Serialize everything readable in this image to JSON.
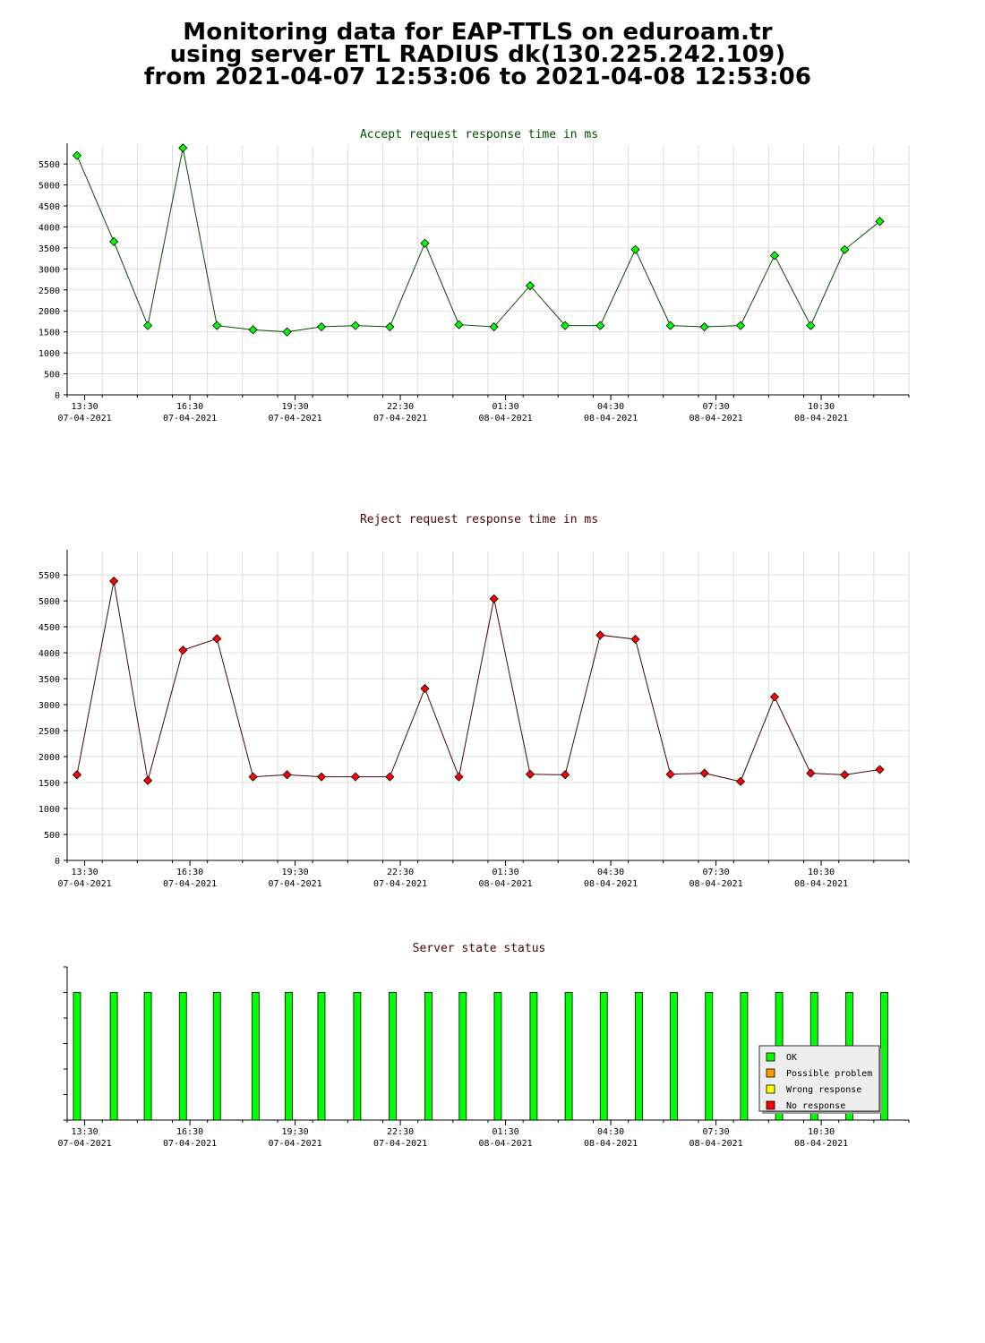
{
  "header": {
    "line1": "Monitoring data for EAP-TTLS on eduroam.tr",
    "line2": "using server ETL RADIUS dk(130.225.242.109)",
    "line3": "from 2021-04-07 12:53:06 to 2021-04-08 12:53:06"
  },
  "x_axis": {
    "times": [
      "13:30",
      "16:30",
      "19:30",
      "22:30",
      "01:30",
      "04:30",
      "07:30",
      "10:30"
    ],
    "dates": [
      "07-04-2021",
      "07-04-2021",
      "07-04-2021",
      "07-04-2021",
      "08-04-2021",
      "08-04-2021",
      "08-04-2021",
      "08-04-2021"
    ]
  },
  "chart_data": [
    {
      "type": "line",
      "title": "Accept request response time in ms",
      "title_color": "#004d00",
      "marker_color": "#00ff00",
      "line_color": "#004d00",
      "x_hours": [
        0.28,
        1.33,
        2.3,
        3.3,
        4.27,
        5.3,
        6.27,
        7.25,
        8.22,
        9.2,
        10.2,
        11.17,
        12.17,
        13.2,
        14.2,
        15.2,
        16.2,
        17.2,
        18.17,
        19.2,
        20.17,
        21.2,
        22.17,
        23.17
      ],
      "values": [
        5700,
        3650,
        1650,
        5880,
        1650,
        1550,
        1500,
        1620,
        1650,
        1620,
        3610,
        1670,
        1620,
        2600,
        1650,
        1650,
        3460,
        1650,
        1620,
        1650,
        3320,
        1650,
        3460,
        4130
      ],
      "yticks": [
        0,
        500,
        1000,
        1500,
        2000,
        2500,
        3000,
        3500,
        4000,
        4500,
        5000,
        5500
      ],
      "ylim": [
        0,
        5950
      ],
      "xlim": [
        0,
        24
      ],
      "grid": true
    },
    {
      "type": "line",
      "title": "Reject request response time in ms",
      "title_color": "#4d0000",
      "marker_color": "#ff0000",
      "line_color": "#4d0000",
      "x_hours": [
        0.28,
        1.33,
        2.3,
        3.3,
        4.27,
        5.3,
        6.27,
        7.25,
        8.22,
        9.2,
        10.2,
        11.17,
        12.17,
        13.2,
        14.2,
        15.2,
        16.2,
        17.2,
        18.17,
        19.2,
        20.17,
        21.2,
        22.17,
        23.17
      ],
      "values": [
        1650,
        5380,
        1540,
        4050,
        4270,
        1610,
        1650,
        1610,
        1610,
        1610,
        3310,
        1610,
        5040,
        1660,
        1650,
        4340,
        4260,
        1660,
        1680,
        1520,
        3150,
        1680,
        1650,
        1750
      ],
      "yticks": [
        0,
        500,
        1000,
        1500,
        2000,
        2500,
        3000,
        3500,
        4000,
        4500,
        5000,
        5500
      ],
      "ylim": [
        0,
        5950
      ],
      "xlim": [
        0,
        24
      ],
      "grid": true
    },
    {
      "type": "bar",
      "title": "Server state status",
      "title_color": "#4d0000",
      "x_hours": [
        0.28,
        1.33,
        2.3,
        3.3,
        4.27,
        5.37,
        6.32,
        7.25,
        8.27,
        9.28,
        10.3,
        11.28,
        12.28,
        13.3,
        14.3,
        15.3,
        16.3,
        17.3,
        18.3,
        19.3,
        20.3,
        21.3,
        22.3,
        23.3
      ],
      "states": [
        "OK",
        "OK",
        "OK",
        "OK",
        "OK",
        "OK",
        "OK",
        "OK",
        "OK",
        "OK",
        "OK",
        "OK",
        "OK",
        "OK",
        "OK",
        "OK",
        "OK",
        "OK",
        "OK",
        "OK",
        "OK",
        "OK",
        "OK",
        "OK"
      ],
      "values": [
        1,
        1,
        1,
        1,
        1,
        1,
        1,
        1,
        1,
        1,
        1,
        1,
        1,
        1,
        1,
        1,
        1,
        1,
        1,
        1,
        1,
        1,
        1,
        1
      ],
      "ylim": [
        0,
        1.2
      ],
      "xlim": [
        0,
        24
      ],
      "legend": [
        {
          "label": "OK",
          "color": "#00ff00"
        },
        {
          "label": "Possible problem",
          "color": "#ff9900"
        },
        {
          "label": "Wrong response",
          "color": "#ffff00"
        },
        {
          "label": "No response",
          "color": "#ff0000"
        }
      ],
      "legend_position": "bottom-right"
    }
  ]
}
